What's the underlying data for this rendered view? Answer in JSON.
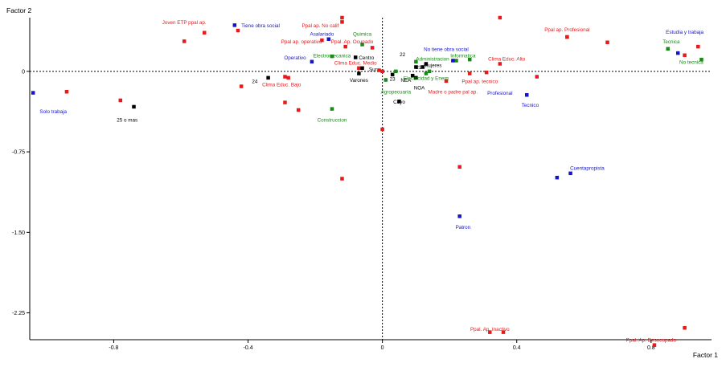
{
  "chart_data": {
    "type": "scatter",
    "xlabel": "Factor 1",
    "ylabel": "Factor 2",
    "xlim": [
      -1.05,
      0.98
    ],
    "ylim": [
      -2.5,
      0.5
    ],
    "x_ticks": [
      -0.8,
      -0.4,
      0,
      0.4,
      0.8
    ],
    "y_ticks": [
      0,
      -0.75,
      -1.5,
      -2.25
    ],
    "x_tick_labels": [
      "-0.8",
      "-0.4",
      "0",
      "0.4",
      "0.8"
    ],
    "y_tick_labels": [
      "0",
      "-0.75",
      "-1.50",
      "-2.25"
    ],
    "grid": false,
    "reference_lines": {
      "x": 0,
      "y": 0
    },
    "colors": {
      "black": "#000000",
      "red": "#e8191b",
      "blue": "#1515c8",
      "green": "#178a17"
    },
    "labeled_points": [
      {
        "label": "Joven ETP ppal ap.",
        "x": -0.59,
        "y": 0.28,
        "color": "red",
        "lx": -0.59,
        "ly": 0.46,
        "anchor": "middle"
      },
      {
        "label": "Tiene obra social",
        "x": -0.44,
        "y": 0.43,
        "color": "blue",
        "lx": -0.42,
        "ly": 0.43,
        "anchor": "start"
      },
      {
        "label": "Ppal ap. No calif",
        "x": -0.12,
        "y": 0.46,
        "color": "red",
        "lx": -0.13,
        "ly": 0.43,
        "anchor": "end"
      },
      {
        "label": "Asalariado",
        "x": -0.16,
        "y": 0.3,
        "color": "blue",
        "lx": -0.18,
        "ly": 0.35,
        "anchor": "middle"
      },
      {
        "label": "Quimica",
        "x": -0.06,
        "y": 0.25,
        "color": "green",
        "lx": -0.06,
        "ly": 0.35,
        "anchor": "middle"
      },
      {
        "label": "Ppal ap. operativo",
        "x": -0.18,
        "y": 0.29,
        "color": "red",
        "lx": -0.18,
        "ly": 0.28,
        "anchor": "end"
      },
      {
        "label": "Ppal. Ap. Ocupado",
        "x": -0.11,
        "y": 0.23,
        "color": "red",
        "lx": -0.09,
        "ly": 0.28,
        "anchor": "middle"
      },
      {
        "label": "Ppal ap. Profesional",
        "x": 0.55,
        "y": 0.32,
        "color": "red",
        "lx": 0.55,
        "ly": 0.39,
        "anchor": "middle"
      },
      {
        "label": "Estudia y trabaja",
        "x": 0.88,
        "y": 0.17,
        "color": "blue",
        "lx": 0.9,
        "ly": 0.37,
        "anchor": "middle"
      },
      {
        "label": "Tecnica",
        "x": 0.85,
        "y": 0.21,
        "color": "green",
        "lx": 0.86,
        "ly": 0.28,
        "anchor": "middle"
      },
      {
        "label": "No tecnica",
        "x": 0.95,
        "y": 0.11,
        "color": "green",
        "lx": 0.92,
        "ly": 0.09,
        "anchor": "middle"
      },
      {
        "label": "Operativo",
        "x": -0.21,
        "y": 0.09,
        "color": "blue",
        "lx": -0.26,
        "ly": 0.13,
        "anchor": "middle"
      },
      {
        "label": "Electromecanica",
        "x": -0.15,
        "y": 0.14,
        "color": "green",
        "lx": -0.15,
        "ly": 0.15,
        "anchor": "middle"
      },
      {
        "label": "Centro",
        "x": -0.08,
        "y": 0.13,
        "color": "black",
        "lx": -0.07,
        "ly": 0.13,
        "anchor": "start"
      },
      {
        "label": "22",
        "x": 0.13,
        "y": 0.07,
        "color": "black",
        "lx": 0.06,
        "ly": 0.16,
        "anchor": "middle"
      },
      {
        "label": "Administracion",
        "x": 0.1,
        "y": 0.09,
        "color": "green",
        "lx": 0.1,
        "ly": 0.12,
        "anchor": "start"
      },
      {
        "label": "No tiene obra social",
        "x": 0.21,
        "y": 0.1,
        "color": "blue",
        "lx": 0.19,
        "ly": 0.21,
        "anchor": "middle"
      },
      {
        "label": "Informatica",
        "x": 0.26,
        "y": 0.11,
        "color": "green",
        "lx": 0.24,
        "ly": 0.15,
        "anchor": "middle"
      },
      {
        "label": "Clima Educ. Alto",
        "x": 0.35,
        "y": 0.07,
        "color": "red",
        "lx": 0.37,
        "ly": 0.12,
        "anchor": "middle"
      },
      {
        "label": "Clima Educ. Medio",
        "x": -0.07,
        "y": 0.03,
        "color": "red",
        "lx": -0.08,
        "ly": 0.08,
        "anchor": "middle"
      },
      {
        "label": "Sur",
        "x": -0.06,
        "y": 0.03,
        "color": "black",
        "lx": -0.04,
        "ly": 0.02,
        "anchor": "start"
      },
      {
        "label": "Mujeres",
        "x": 0.12,
        "y": 0.04,
        "color": "black",
        "lx": 0.15,
        "ly": 0.06,
        "anchor": "middle"
      },
      {
        "label": "21",
        "x": 0.1,
        "y": 0.04,
        "color": "black",
        "lx": 0.1,
        "ly": 0.04,
        "anchor": "start"
      },
      {
        "label": "Varones",
        "x": -0.07,
        "y": -0.02,
        "color": "black",
        "lx": -0.07,
        "ly": -0.08,
        "anchor": "middle"
      },
      {
        "label": "24",
        "x": -0.34,
        "y": -0.06,
        "color": "black",
        "lx": -0.38,
        "ly": -0.09,
        "anchor": "middle"
      },
      {
        "label": "Clima Educ. Bajo",
        "x": -0.28,
        "y": -0.06,
        "color": "red",
        "lx": -0.3,
        "ly": -0.12,
        "anchor": "middle"
      },
      {
        "label": "23",
        "x": 0.03,
        "y": -0.03,
        "color": "black",
        "lx": 0.03,
        "ly": -0.07,
        "anchor": "middle"
      },
      {
        "label": "NEA",
        "x": 0.09,
        "y": -0.04,
        "color": "black",
        "lx": 0.07,
        "ly": -0.08,
        "anchor": "middle"
      },
      {
        "label": "NOA",
        "x": 0.1,
        "y": -0.06,
        "color": "black",
        "lx": 0.11,
        "ly": -0.15,
        "anchor": "middle"
      },
      {
        "label": "Electricidad y Energ",
        "x": 0.13,
        "y": -0.02,
        "color": "green",
        "lx": 0.13,
        "ly": -0.06,
        "anchor": "middle"
      },
      {
        "label": "Ppal ap. tecnico",
        "x": 0.26,
        "y": -0.02,
        "color": "red",
        "lx": 0.29,
        "ly": -0.09,
        "anchor": "middle"
      },
      {
        "label": "Agropecuaria",
        "x": 0.01,
        "y": -0.08,
        "color": "green",
        "lx": 0.04,
        "ly": -0.19,
        "anchor": "middle"
      },
      {
        "label": "Madre o padre pal ap.",
        "x": 0.19,
        "y": -0.09,
        "color": "red",
        "lx": 0.21,
        "ly": -0.19,
        "anchor": "middle"
      },
      {
        "label": "Profesional",
        "x": 0.43,
        "y": -0.22,
        "color": "blue",
        "lx": 0.35,
        "ly": -0.2,
        "anchor": "middle"
      },
      {
        "label": "Tecnico",
        "x": 0.43,
        "y": -0.22,
        "color": "blue",
        "lx": 0.44,
        "ly": -0.31,
        "anchor": "middle"
      },
      {
        "label": "Cuyo",
        "x": 0.05,
        "y": -0.28,
        "color": "black",
        "lx": 0.05,
        "ly": -0.28,
        "anchor": "middle"
      },
      {
        "label": "Solo trabaja",
        "x": -1.04,
        "y": -0.2,
        "color": "blue",
        "lx": -0.98,
        "ly": -0.37,
        "anchor": "middle"
      },
      {
        "label": "25 o mas",
        "x": -0.74,
        "y": -0.33,
        "color": "black",
        "lx": -0.76,
        "ly": -0.45,
        "anchor": "middle"
      },
      {
        "label": "Construccion",
        "x": -0.15,
        "y": -0.35,
        "color": "green",
        "lx": -0.15,
        "ly": -0.45,
        "anchor": "middle"
      },
      {
        "label": "Cuentapropista",
        "x": 0.56,
        "y": -0.95,
        "color": "blue",
        "lx": 0.61,
        "ly": -0.9,
        "anchor": "middle"
      },
      {
        "label": "Patron",
        "x": 0.23,
        "y": -1.35,
        "color": "blue",
        "lx": 0.24,
        "ly": -1.45,
        "anchor": "middle"
      },
      {
        "label": "Ppal. Ap. Inactivo",
        "x": 0.36,
        "y": -2.43,
        "color": "red",
        "lx": 0.32,
        "ly": -2.4,
        "anchor": "middle"
      },
      {
        "label": "Ppal. Ap. Desocupado",
        "x": 0.9,
        "y": -2.39,
        "color": "red",
        "lx": 0.8,
        "ly": -2.5,
        "anchor": "middle"
      }
    ],
    "unlabeled_points": [
      {
        "x": -0.94,
        "y": -0.19,
        "color": "red"
      },
      {
        "x": -0.78,
        "y": -0.27,
        "color": "red"
      },
      {
        "x": -0.53,
        "y": 0.36,
        "color": "red"
      },
      {
        "x": -0.43,
        "y": 0.38,
        "color": "red"
      },
      {
        "x": -0.42,
        "y": -0.14,
        "color": "red"
      },
      {
        "x": -0.29,
        "y": -0.05,
        "color": "red"
      },
      {
        "x": -0.29,
        "y": -0.29,
        "color": "red"
      },
      {
        "x": -0.25,
        "y": -0.36,
        "color": "red"
      },
      {
        "x": -0.12,
        "y": 0.5,
        "color": "red"
      },
      {
        "x": -0.03,
        "y": 0.22,
        "color": "red"
      },
      {
        "x": -0.01,
        "y": 0.01,
        "color": "red"
      },
      {
        "x": 0.0,
        "y": 0.0,
        "color": "red"
      },
      {
        "x": 0.0,
        "y": -0.54,
        "color": "red"
      },
      {
        "x": -0.12,
        "y": -1.0,
        "color": "red"
      },
      {
        "x": 0.35,
        "y": 0.5,
        "color": "red"
      },
      {
        "x": 0.55,
        "y": 0.32,
        "color": "red"
      },
      {
        "x": 0.67,
        "y": 0.27,
        "color": "red"
      },
      {
        "x": 0.46,
        "y": -0.05,
        "color": "red"
      },
      {
        "x": 0.31,
        "y": -0.01,
        "color": "red"
      },
      {
        "x": 0.23,
        "y": -0.89,
        "color": "red"
      },
      {
        "x": 0.81,
        "y": -2.55,
        "color": "red"
      },
      {
        "x": 0.32,
        "y": -2.43,
        "color": "red"
      },
      {
        "x": 0.9,
        "y": 0.15,
        "color": "red"
      },
      {
        "x": 0.94,
        "y": 0.23,
        "color": "red"
      },
      {
        "x": 0.52,
        "y": -0.99,
        "color": "blue"
      },
      {
        "x": 0.04,
        "y": 0.0,
        "color": "green"
      },
      {
        "x": 0.14,
        "y": 0.0,
        "color": "green"
      },
      {
        "x": 0.22,
        "y": 0.1,
        "color": "green"
      }
    ]
  }
}
